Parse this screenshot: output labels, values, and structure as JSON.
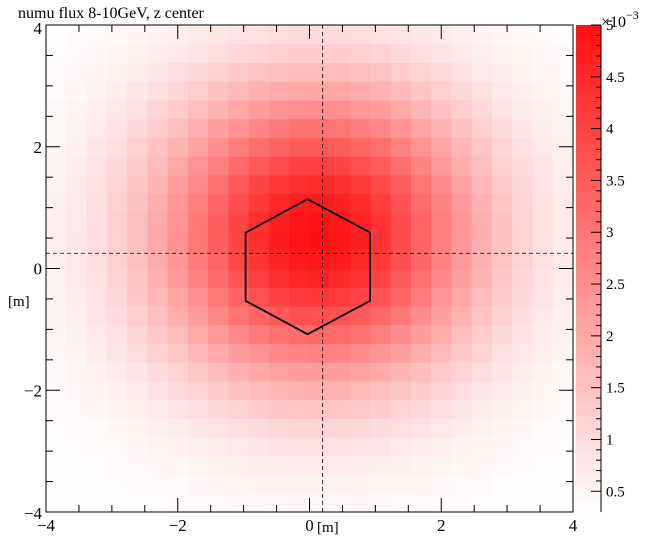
{
  "chart_data": {
    "type": "heatmap",
    "title": "numu flux 8-10GeV, z center",
    "x_unit": "[m]",
    "y_unit": "[m]",
    "xlim": [
      -4,
      4
    ],
    "ylim": [
      -4,
      4
    ],
    "x_ticks": [
      -4,
      -2,
      0,
      2,
      4
    ],
    "y_ticks": [
      -4,
      -2,
      0,
      2,
      4
    ],
    "x_tick_labels": [
      "−4",
      "−2",
      "0",
      "2",
      "4"
    ],
    "y_tick_labels": [
      "−4",
      "−2",
      "0",
      "2",
      "4"
    ],
    "bins": {
      "nx": 26,
      "ny": 26
    },
    "peak": {
      "x": 0.12,
      "y": 0.55,
      "value": 5.0
    },
    "z_range": [
      0.3,
      5.0
    ],
    "z_scale_exponent": "×10",
    "z_scale_power": "−3",
    "z_ticks": [
      0.5,
      1,
      1.5,
      2,
      2.5,
      3,
      3.5,
      4,
      4.5,
      5
    ],
    "z_tick_labels": [
      "0.5",
      "1",
      "1.5",
      "2",
      "2.5",
      "3",
      "3.5",
      "4",
      "4.5",
      "5"
    ],
    "crosshair": {
      "x": 0.2,
      "y": 0.25
    },
    "hexagon": {
      "center": [
        -0.03,
        0.03
      ],
      "vertices": [
        [
          -0.03,
          1.14
        ],
        [
          0.92,
          0.59
        ],
        [
          0.92,
          -0.53
        ],
        [
          -0.03,
          -1.08
        ],
        [
          -0.97,
          -0.53
        ],
        [
          -0.97,
          0.59
        ]
      ]
    },
    "colors": {
      "low": "#ffffff",
      "high": "#ff1010",
      "line": "#000000"
    }
  }
}
